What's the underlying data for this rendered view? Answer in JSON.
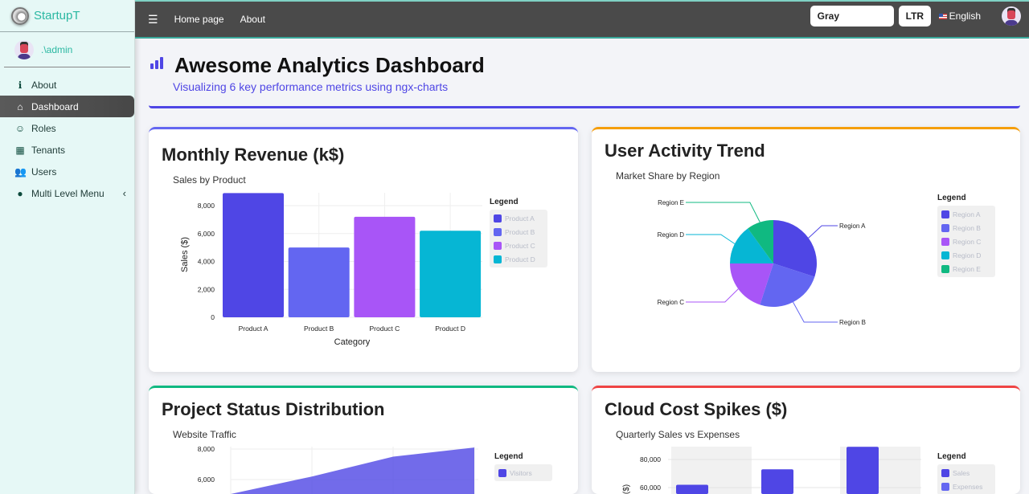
{
  "sidebar": {
    "brand": "StartupT",
    "user": ".\\admin",
    "items": [
      {
        "label": "About",
        "icon": "info-circle-icon",
        "glyph": "ℹ"
      },
      {
        "label": "Dashboard",
        "icon": "home-icon",
        "glyph": "⌂",
        "active": true
      },
      {
        "label": "Roles",
        "icon": "masks-icon",
        "glyph": "☺"
      },
      {
        "label": "Tenants",
        "icon": "building-icon",
        "glyph": "▦"
      },
      {
        "label": "Users",
        "icon": "users-icon",
        "glyph": "👥"
      },
      {
        "label": "Multi Level Menu",
        "icon": "circle-icon",
        "glyph": "●"
      }
    ]
  },
  "topbar": {
    "links": [
      "Home page",
      "About"
    ],
    "theme": "Gray",
    "direction": "LTR",
    "language": "English"
  },
  "header": {
    "title": "Awesome Analytics Dashboard",
    "subtitle": "Visualizing 6 key performance metrics using ngx-charts"
  },
  "cards": [
    {
      "title": "Monthly Revenue (k$)",
      "subtitle": "Sales by Product",
      "accent": "#6366f1"
    },
    {
      "title": "User Activity Trend",
      "subtitle": "Market Share by Region",
      "accent": "#f59e0b"
    },
    {
      "title": "Project Status Distribution",
      "subtitle": "Website Traffic",
      "accent": "#10b981"
    },
    {
      "title": "Cloud Cost Spikes ($)",
      "subtitle": "Quarterly Sales vs Expenses",
      "accent": "#ef4444"
    }
  ],
  "legend_title": "Legend",
  "chart_data": [
    {
      "type": "bar",
      "categories": [
        "Product A",
        "Product B",
        "Product C",
        "Product D"
      ],
      "values": [
        8900,
        5000,
        7200,
        6200
      ],
      "colors": [
        "#4f46e5",
        "#6366f1",
        "#a855f7",
        "#06b6d4"
      ],
      "xlabel": "Category",
      "ylabel": "Sales ($)",
      "yticks": [
        "0",
        "2,000",
        "4,000",
        "6,000",
        "8,000"
      ],
      "ylim": [
        0,
        8900
      ],
      "legend": [
        "Product A",
        "Product B",
        "Product C",
        "Product D"
      ],
      "grid": true,
      "legend_position": "right"
    },
    {
      "type": "pie",
      "categories": [
        "Region A",
        "Region B",
        "Region C",
        "Region D",
        "Region E"
      ],
      "values": [
        30,
        25,
        20,
        15,
        10
      ],
      "colors": [
        "#4f46e5",
        "#6366f1",
        "#a855f7",
        "#06b6d4",
        "#10b981"
      ],
      "legend": [
        "Region A",
        "Region B",
        "Region C",
        "Region D",
        "Region E"
      ],
      "legend_position": "right"
    },
    {
      "type": "area",
      "series": [
        {
          "name": "Visitors",
          "values": [
            5000,
            6200,
            7500,
            8100
          ]
        }
      ],
      "color": "#4f46e5",
      "yticks": [
        "6,000",
        "8,000"
      ],
      "legend": [
        "Visitors"
      ],
      "grid": true,
      "legend_position": "right"
    },
    {
      "type": "bar",
      "grouped": true,
      "series": [
        {
          "name": "Sales",
          "values": [
            62000,
            73000,
            89000
          ]
        },
        {
          "name": "Expenses",
          "values": []
        }
      ],
      "colors": [
        "#4f46e5",
        "#6366f1"
      ],
      "ylabel": "($)",
      "yticks": [
        "60,000",
        "80,000"
      ],
      "legend": [
        "Sales",
        "Expenses"
      ],
      "legend_position": "right"
    }
  ]
}
